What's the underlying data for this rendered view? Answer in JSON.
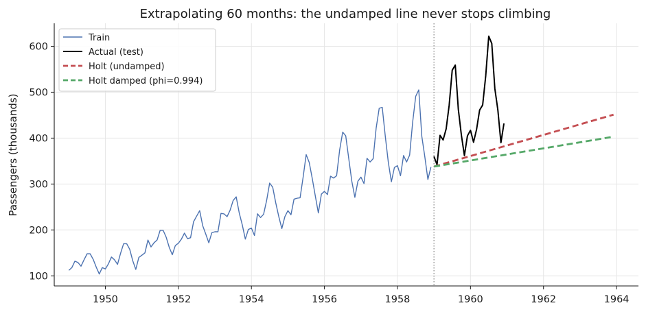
{
  "chart_data": {
    "type": "line",
    "title": "Extrapolating 60 months: the undamped line never stops climbing",
    "xlabel": "",
    "ylabel": "Passengers (thousands)",
    "xlim": [
      1948.6,
      1964.6
    ],
    "ylim": [
      78,
      650
    ],
    "xticks": [
      1950,
      1952,
      1954,
      1956,
      1958,
      1960,
      1962,
      1964
    ],
    "yticks": [
      100,
      200,
      300,
      400,
      500,
      600
    ],
    "grid": true,
    "legend": "top-left",
    "split_date": "1959-01",
    "series": [
      {
        "name": "Train",
        "color": "#4c72b0",
        "style": "solid",
        "start": "1949-01",
        "values": [
          112,
          118,
          132,
          129,
          121,
          135,
          148,
          148,
          136,
          119,
          104,
          118,
          115,
          126,
          141,
          135,
          125,
          149,
          170,
          170,
          158,
          133,
          114,
          140,
          145,
          150,
          178,
          163,
          172,
          178,
          199,
          199,
          184,
          162,
          146,
          166,
          171,
          180,
          193,
          181,
          183,
          218,
          230,
          242,
          209,
          191,
          172,
          194,
          196,
          196,
          236,
          235,
          229,
          243,
          264,
          272,
          237,
          211,
          180,
          201,
          204,
          188,
          235,
          227,
          234,
          264,
          302,
          293,
          259,
          229,
          203,
          229,
          242,
          233,
          267,
          269,
          270,
          315,
          364,
          347,
          312,
          274,
          237,
          278,
          284,
          277,
          317,
          313,
          318,
          374,
          413,
          405,
          355,
          306,
          271,
          306,
          315,
          301,
          356,
          348,
          355,
          422,
          465,
          467,
          404,
          347,
          305,
          336,
          340,
          318,
          362,
          348,
          363,
          435,
          491,
          505,
          404,
          359,
          310,
          337
        ]
      },
      {
        "name": "Actual (test)",
        "color": "#000000",
        "style": "solid",
        "start": "1959-01",
        "values": [
          360,
          342,
          406,
          396,
          420,
          472,
          548,
          559,
          463,
          407,
          362,
          405,
          417,
          391,
          419,
          461,
          472,
          535,
          622,
          606,
          508,
          461,
          390,
          432
        ]
      },
      {
        "name": "Holt (undamped)",
        "color": "#c44e52",
        "style": "dashed",
        "start": "1959-01",
        "end": "1963-12",
        "start_value": 338,
        "end_value": 451
      },
      {
        "name": "Holt damped (phi=0.994)",
        "color": "#55a868",
        "style": "dashed",
        "start": "1959-01",
        "end": "1963-12",
        "start_value": 338,
        "end_value": 403
      }
    ]
  }
}
